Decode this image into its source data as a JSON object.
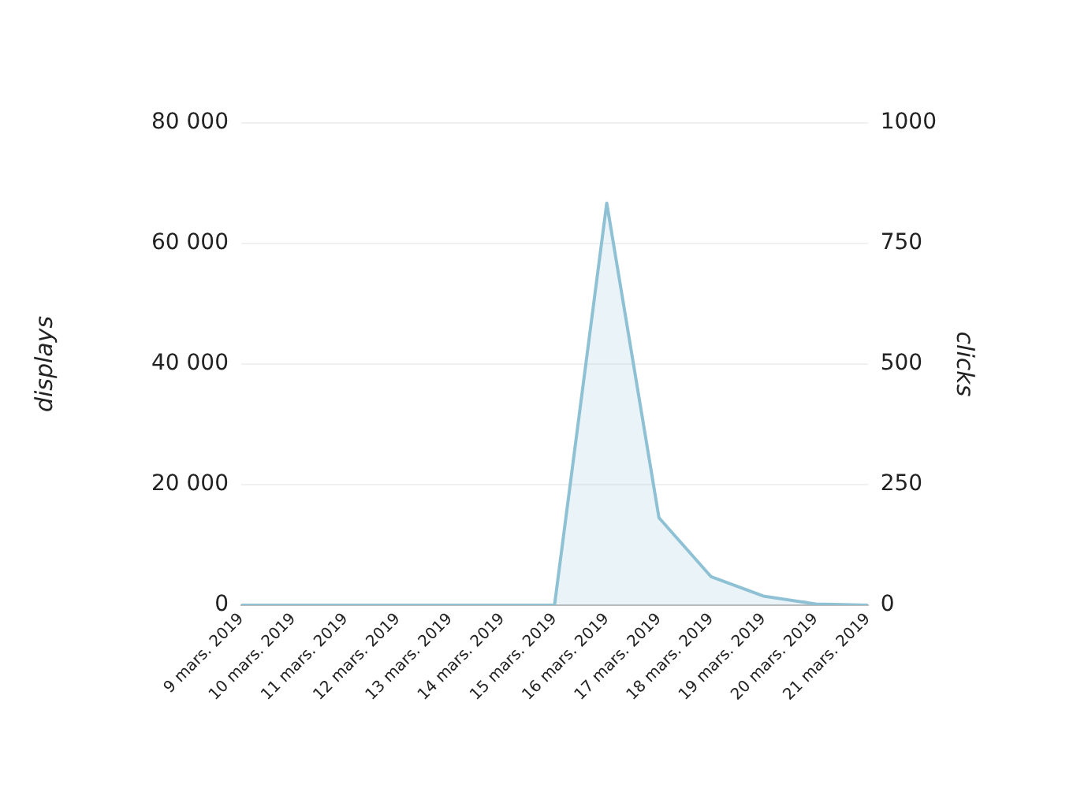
{
  "chart_data": {
    "type": "area",
    "ylabel": "displays",
    "y2label": "clicks",
    "categories": [
      "9 mars. 2019",
      "10 mars. 2019",
      "11 mars. 2019",
      "12 mars. 2019",
      "13 mars. 2019",
      "14 mars. 2019",
      "15 mars. 2019",
      "16 mars. 2019",
      "17 mars. 2019",
      "18 mars. 2019",
      "19 mars. 2019",
      "20 mars. 2019",
      "21 mars. 2019"
    ],
    "series": [
      {
        "color": "#8fc1d4",
        "values": [
          0,
          0,
          0,
          0,
          0,
          0,
          0,
          66700,
          14500,
          4700,
          1500,
          200,
          0
        ]
      }
    ],
    "ylim": [
      0,
      80000
    ],
    "yticks": [
      0,
      {
        "value": 20000,
        "label": "20 000"
      },
      {
        "value": 40000,
        "label": "40 000"
      },
      {
        "value": 60000,
        "label": "60 000"
      },
      {
        "value": 80000,
        "label": "80 000"
      }
    ],
    "y2lim": [
      0,
      1000
    ],
    "y2ticks": [
      0,
      250,
      500,
      750,
      1000
    ],
    "grid": "y",
    "legend": false,
    "marker": "none"
  }
}
